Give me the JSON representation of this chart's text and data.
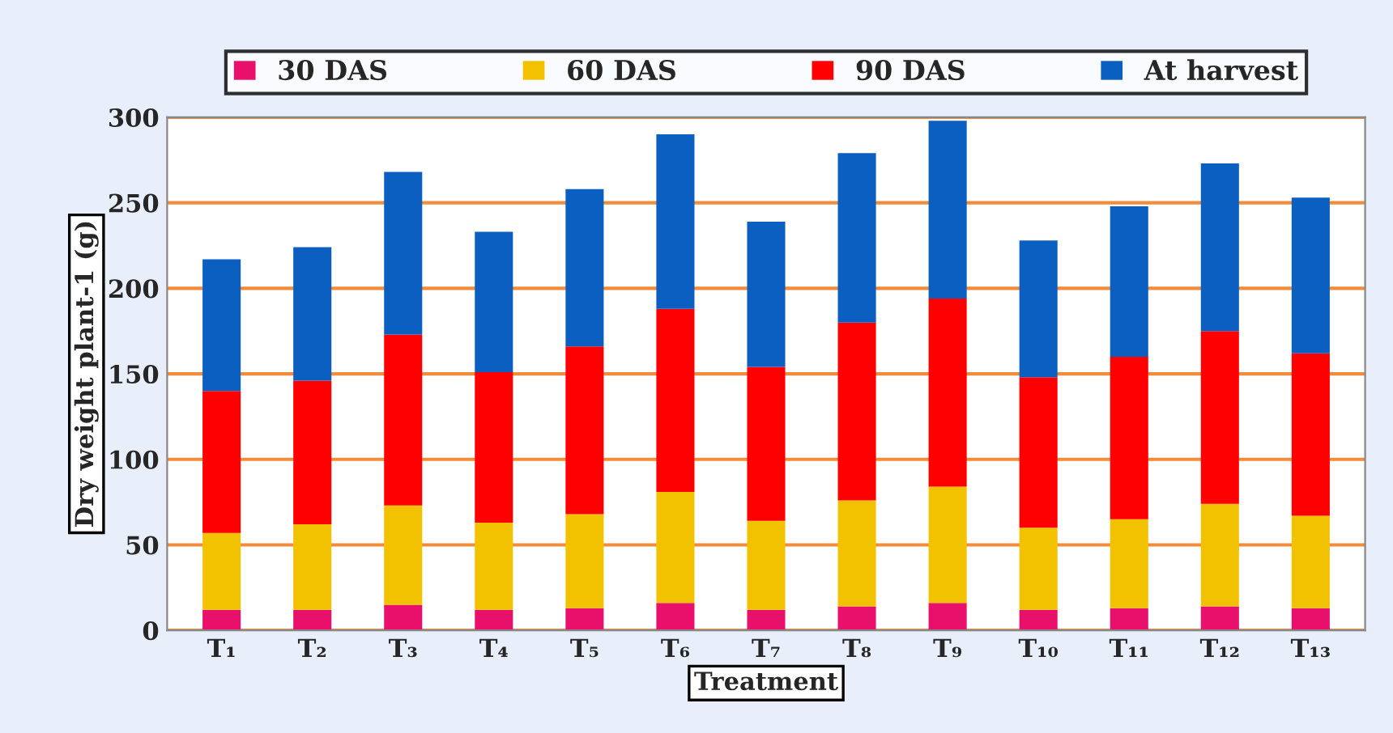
{
  "chart_data": {
    "type": "bar",
    "stacked": true,
    "xlabel": "Treatment",
    "ylabel": "Dry weight plant-1 (g)",
    "categories": [
      "T₁",
      "T₂",
      "T₃",
      "T₄",
      "T₅",
      "T₆",
      "T₇",
      "T₈",
      "T₉",
      "T₁₀",
      "T₁₁",
      "T₁₂",
      "T₁₃"
    ],
    "series": [
      {
        "name": "30 DAS",
        "color": "#e8106a",
        "values": [
          12,
          12,
          15,
          12,
          13,
          16,
          12,
          14,
          16,
          12,
          13,
          14,
          13
        ]
      },
      {
        "name": "60 DAS",
        "color": "#f2c200",
        "values": [
          45,
          50,
          58,
          51,
          55,
          65,
          52,
          62,
          68,
          48,
          52,
          60,
          54
        ]
      },
      {
        "name": "90 DAS",
        "color": "#ff0000",
        "values": [
          83,
          84,
          100,
          88,
          98,
          107,
          90,
          104,
          110,
          88,
          95,
          101,
          95
        ]
      },
      {
        "name": "At harvest",
        "color": "#0a5fc0",
        "values": [
          77,
          78,
          95,
          82,
          92,
          102,
          85,
          99,
          104,
          80,
          88,
          98,
          91
        ]
      }
    ],
    "ylim": [
      0,
      300
    ],
    "yticks": [
      0,
      50,
      100,
      150,
      200,
      250,
      300
    ],
    "grid": "y",
    "legend": "top"
  }
}
